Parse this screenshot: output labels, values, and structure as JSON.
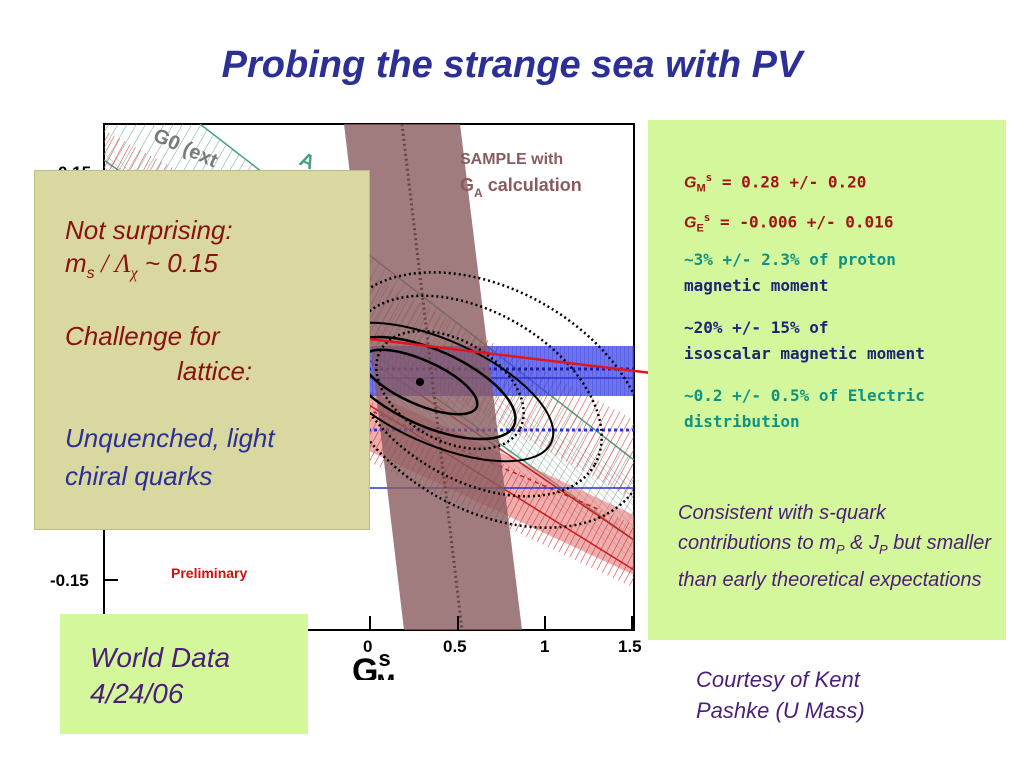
{
  "title": "Probing the strange sea with PV",
  "plot": {
    "labels": {
      "g0": "G0 (ext",
      "a": "A",
      "sample_line1": "SAMPLE with",
      "sample_line2_pre": "G",
      "sample_line2_sub": "A",
      "sample_line2_post": " calculation",
      "preliminary": "Preliminary",
      "y_top_tick": "0.15",
      "y_bottom_tick": "-0.15",
      "x_ticks": [
        "0",
        "0.5",
        "1",
        "1.5"
      ],
      "x_axis_main": "G",
      "x_axis_sup": "s",
      "x_axis_sub": "M"
    }
  },
  "left_box": {
    "line1": "Not surprising:",
    "line2_m": "m",
    "line2_sub": "s",
    "line2_rest": " / Λ",
    "line2_sub2": "χ",
    "line2_end": " ~ 0.15",
    "challenge1": "Challenge for",
    "challenge2": "lattice:",
    "unq1": "Unquenched, light",
    "unq2": "chiral quarks"
  },
  "right_box": {
    "gm_G": "G",
    "gm_sub": "M",
    "gm_sup": "s",
    "gm_val": " = 0.28 +/- 0.20",
    "ge_G": "G",
    "ge_sub": "E",
    "ge_sup": "s",
    "ge_val": " = -0.006 +/- 0.016",
    "pct1_l1": "~3% +/- 2.3% of proton",
    "pct1_l2": "magnetic moment",
    "pct2_l1": "~20% +/- 15% of",
    "pct2_l2": "isoscalar magnetic moment",
    "pct3_l1": "~0.2 +/- 0.5% of Electric",
    "pct3_l2": "distribution",
    "consistent_a": "Consistent with s-quark contributions to m",
    "consistent_sub1": "P",
    "consistent_b": " & J",
    "consistent_sub2": "P",
    "consistent_c": " but smaller than early theoretical expectations"
  },
  "world_data": {
    "line1": "World Data",
    "line2": "4/24/06"
  },
  "courtesy": {
    "line1": "Courtesy of Kent",
    "line2": "Pashke (U Mass)"
  }
}
